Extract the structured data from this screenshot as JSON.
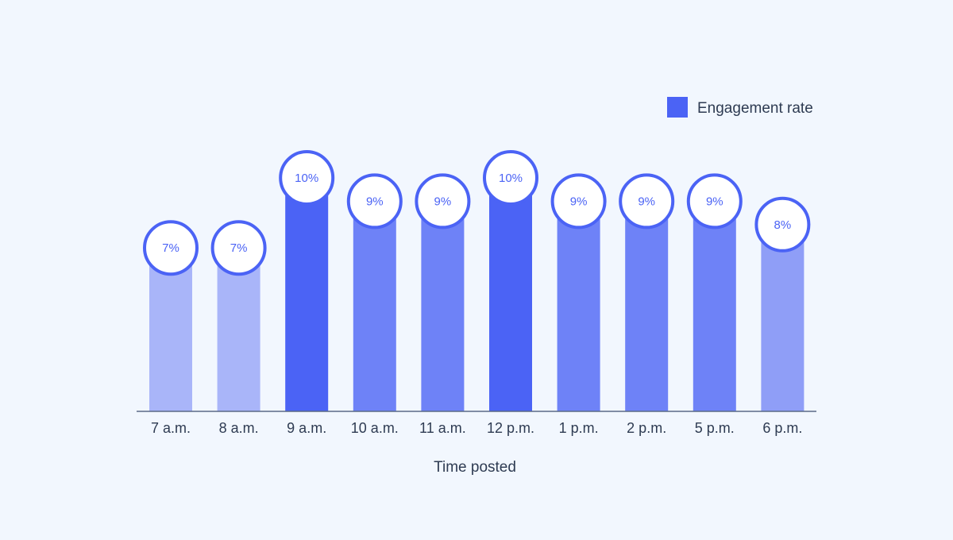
{
  "chart_data": {
    "type": "bar",
    "title": "",
    "xlabel": "Time posted",
    "ylabel": "",
    "categories": [
      "7 a.m.",
      "8 a.m.",
      "9 a.m.",
      "10 a.m.",
      "11 a.m.",
      "12 p.m.",
      "1 p.m.",
      "2 p.m.",
      "5 p.m.",
      "6 p.m."
    ],
    "series": [
      {
        "name": "Engagement rate",
        "values": [
          7,
          7,
          10,
          9,
          9,
          10,
          9,
          9,
          9,
          8
        ]
      }
    ],
    "value_labels": [
      "7%",
      "7%",
      "10%",
      "9%",
      "9%",
      "10%",
      "9%",
      "9%",
      "9%",
      "8%"
    ],
    "ylim": [
      0,
      10
    ],
    "grid": false,
    "legend_position": "top-right",
    "colors": {
      "background": "#f2f7fe",
      "bar_by_value": {
        "7": "#a9b5f9",
        "8": "#8f9ef7",
        "9": "#6e82f7",
        "10": "#4b63f5"
      },
      "legend_swatch": "#4b63f5",
      "circle_stroke": "#4b63f5",
      "circle_fill": "#ffffff",
      "label_text": "#4b63f5",
      "axis": "#5a6a85",
      "axis_text": "#2e3b52"
    }
  }
}
